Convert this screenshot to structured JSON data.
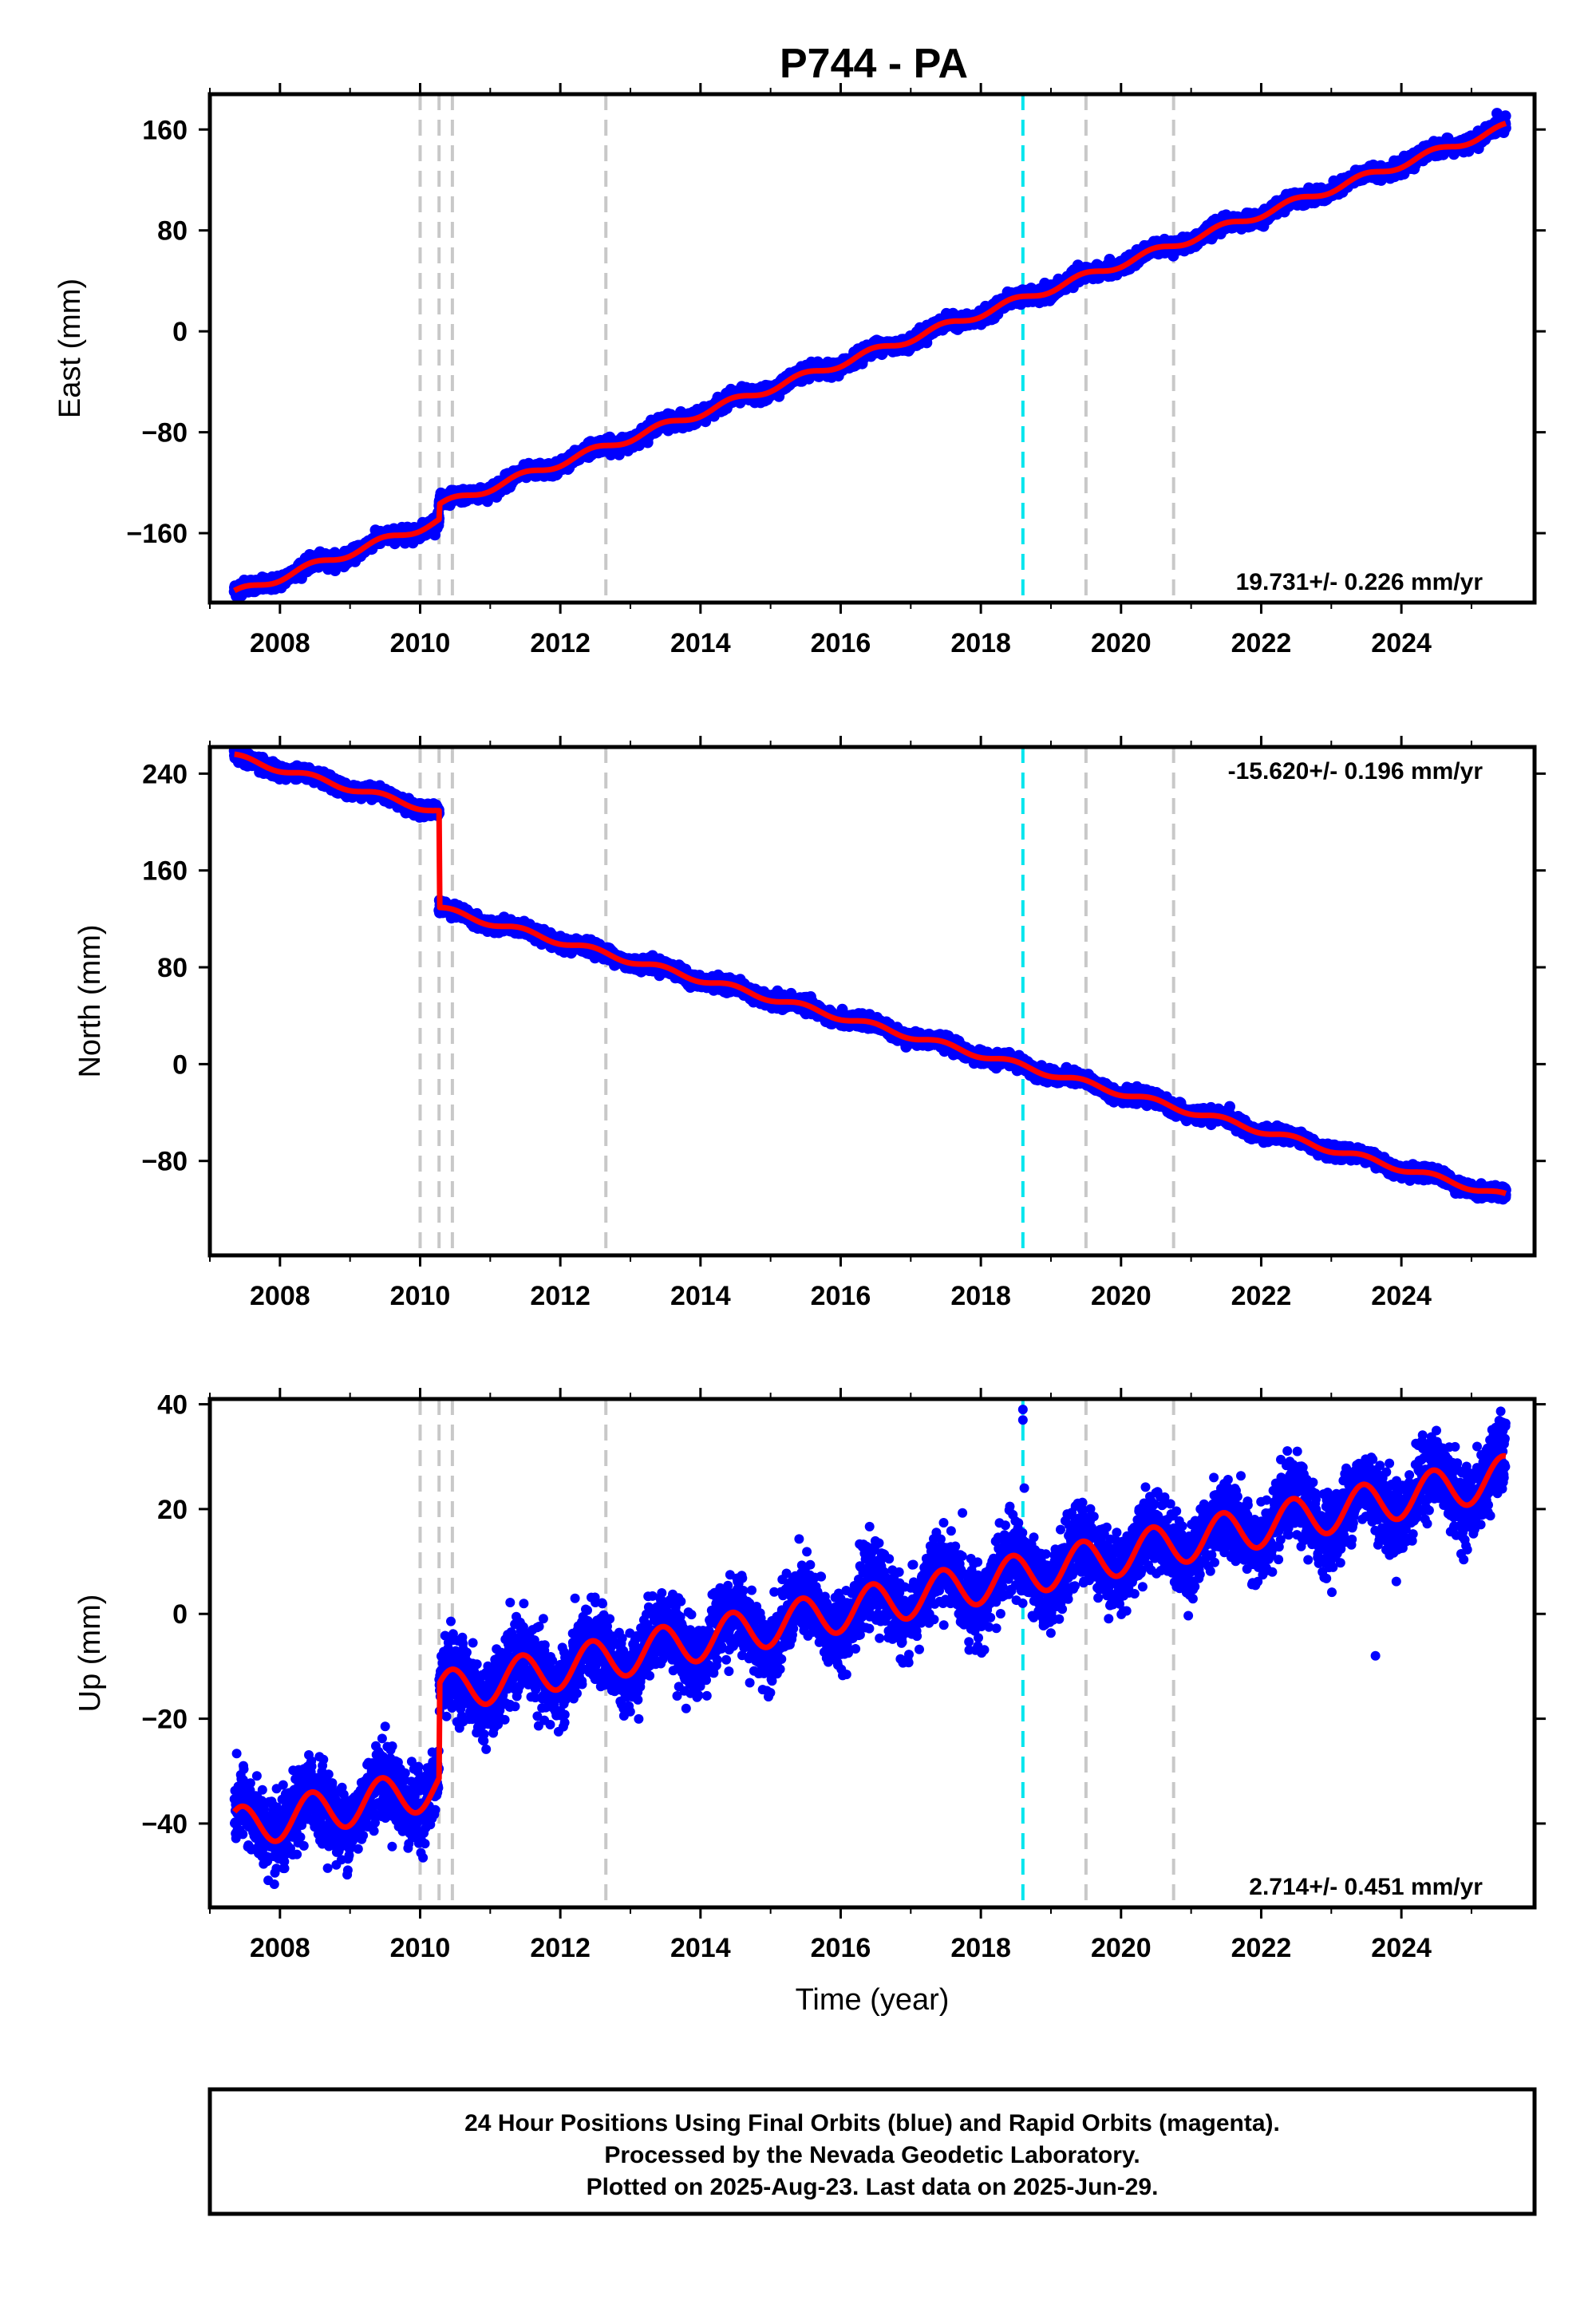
{
  "title": "P744 - PA",
  "footer": {
    "line1": "24 Hour Positions Using Final Orbits (blue) and Rapid Orbits (magenta).",
    "line2": "Processed by the Nevada Geodetic Laboratory.",
    "line3": "Plotted on 2025-Aug-23. Last data on 2025-Jun-29."
  },
  "colors": {
    "data": "#0000ff",
    "model": "#ff0000",
    "event_line": "#c8c8c8",
    "special_line": "#00e5ee",
    "frame": "#000000"
  },
  "chart_data": [
    {
      "type": "scatter",
      "component": "east",
      "ylabel": "East (mm)",
      "xlabel": "",
      "xlim": [
        2007.0,
        2025.9
      ],
      "ylim": [
        -215,
        188
      ],
      "xticks": [
        2008,
        2010,
        2012,
        2014,
        2016,
        2018,
        2020,
        2022,
        2024
      ],
      "yticks": [
        -160,
        -80,
        0,
        80,
        160
      ],
      "rate_text": "19.731+/- 0.226 mm/yr",
      "rate_position": "bottom-right",
      "event_lines": [
        2010.0,
        2010.27,
        2010.46,
        2012.65,
        2019.5,
        2020.75
      ],
      "special_lines": [
        2018.6
      ],
      "data_start": 2007.35,
      "data_end": 2025.49,
      "model": {
        "rate": 19.731,
        "value_at_start": -208,
        "offsets": [
          {
            "year": 2010.27,
            "jump": 12
          }
        ],
        "annual_amplitude": 3,
        "scatter": 2.5
      }
    },
    {
      "type": "scatter",
      "component": "north",
      "ylabel": "North (mm)",
      "xlabel": "",
      "xlim": [
        2007.0,
        2025.9
      ],
      "ylim": [
        -158,
        262
      ],
      "xticks": [
        2008,
        2010,
        2012,
        2014,
        2016,
        2018,
        2020,
        2022,
        2024
      ],
      "yticks": [
        -80,
        0,
        80,
        160,
        240
      ],
      "rate_text": "-15.620+/- 0.196 mm/yr",
      "rate_position": "top-right",
      "event_lines": [
        2010.0,
        2010.27,
        2010.46,
        2012.65,
        2019.5,
        2020.75
      ],
      "special_lines": [
        2018.6
      ],
      "data_start": 2007.35,
      "data_end": 2025.49,
      "model": {
        "rate": -15.62,
        "value_at_start": 254,
        "offsets": [
          {
            "year": 2010.27,
            "jump": -80
          }
        ],
        "annual_amplitude": 2.5,
        "scatter": 2.5
      }
    },
    {
      "type": "scatter",
      "component": "up",
      "ylabel": "Up (mm)",
      "xlabel": "Time (year)",
      "xlim": [
        2007.0,
        2025.9
      ],
      "ylim": [
        -56,
        41
      ],
      "xticks": [
        2008,
        2010,
        2012,
        2014,
        2016,
        2018,
        2020,
        2022,
        2024
      ],
      "yticks": [
        -40,
        -20,
        0,
        20,
        40
      ],
      "rate_text": "2.714+/- 0.451 mm/yr",
      "rate_position": "bottom-right",
      "event_lines": [
        2010.0,
        2010.27,
        2010.46,
        2012.65,
        2019.5,
        2020.75
      ],
      "special_lines": [
        2018.6
      ],
      "data_start": 2007.35,
      "data_end": 2025.49,
      "model": {
        "rate": 2.714,
        "value_at_start": -41,
        "offsets": [
          {
            "year": 2010.27,
            "jump": 18
          }
        ],
        "annual_amplitude": 4,
        "scatter": 3.5,
        "outliers": [
          {
            "x": 2018.6,
            "y": 39
          },
          {
            "x": 2018.6,
            "y": 37
          },
          {
            "x": 2018.62,
            "y": 24
          },
          {
            "x": 2023.63,
            "y": -8
          }
        ]
      }
    }
  ]
}
